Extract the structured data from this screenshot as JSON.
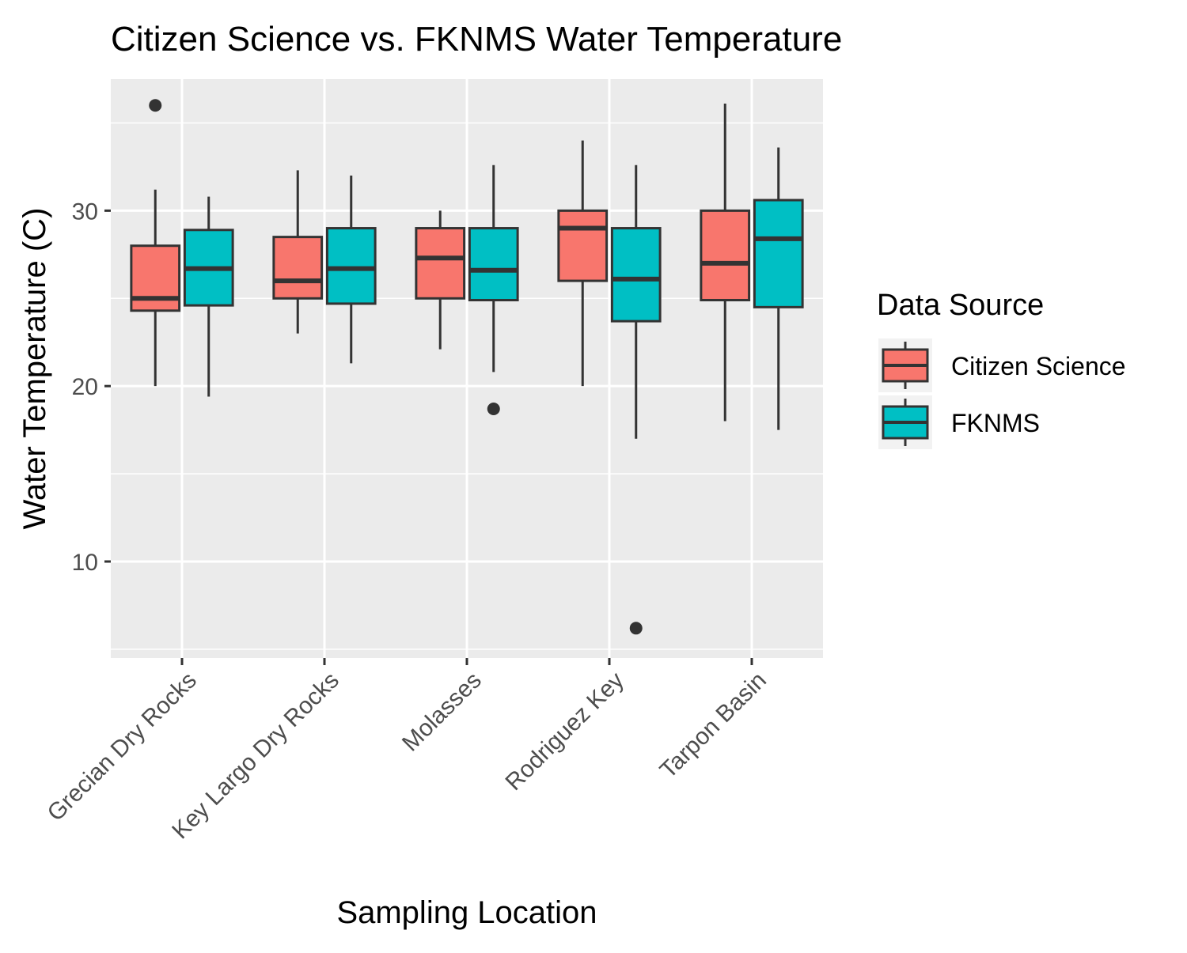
{
  "chart_data": {
    "type": "boxplot",
    "title": "Citizen Science vs. FKNMS Water Temperature",
    "xlabel": "Sampling Location",
    "ylabel": "Water Temperature (C)",
    "ylim": [
      4.5,
      37.5
    ],
    "yticks": [
      10,
      20,
      30
    ],
    "grid": true,
    "legend_position": "right",
    "legend_title": "Data Source",
    "categories": [
      "Grecian Dry Rocks",
      "Key Largo Dry Rocks",
      "Molasses",
      "Rodriguez Key",
      "Tarpon Basin"
    ],
    "series": [
      {
        "name": "Citizen Science",
        "color": "#F8766D",
        "boxes": [
          {
            "whisker_low": 20.0,
            "q1": 24.3,
            "median": 25.0,
            "q3": 28.0,
            "whisker_high": 31.2,
            "outliers": [
              36.0
            ]
          },
          {
            "whisker_low": 23.0,
            "q1": 25.0,
            "median": 26.0,
            "q3": 28.5,
            "whisker_high": 32.3,
            "outliers": []
          },
          {
            "whisker_low": 22.1,
            "q1": 25.0,
            "median": 27.3,
            "q3": 29.0,
            "whisker_high": 30.0,
            "outliers": []
          },
          {
            "whisker_low": 20.0,
            "q1": 26.0,
            "median": 29.0,
            "q3": 30.0,
            "whisker_high": 34.0,
            "outliers": []
          },
          {
            "whisker_low": 18.0,
            "q1": 24.9,
            "median": 27.0,
            "q3": 30.0,
            "whisker_high": 36.1,
            "outliers": []
          }
        ]
      },
      {
        "name": "FKNMS",
        "color": "#00BFC4",
        "boxes": [
          {
            "whisker_low": 19.4,
            "q1": 24.6,
            "median": 26.7,
            "q3": 28.9,
            "whisker_high": 30.8,
            "outliers": []
          },
          {
            "whisker_low": 21.3,
            "q1": 24.7,
            "median": 26.7,
            "q3": 29.0,
            "whisker_high": 32.0,
            "outliers": []
          },
          {
            "whisker_low": 20.8,
            "q1": 24.9,
            "median": 26.6,
            "q3": 29.0,
            "whisker_high": 32.6,
            "outliers": [
              18.7
            ]
          },
          {
            "whisker_low": 17.0,
            "q1": 23.7,
            "median": 26.1,
            "q3": 29.0,
            "whisker_high": 32.6,
            "outliers": [
              6.2
            ]
          },
          {
            "whisker_low": 17.5,
            "q1": 24.5,
            "median": 28.4,
            "q3": 30.6,
            "whisker_high": 33.6,
            "outliers": []
          }
        ]
      }
    ]
  }
}
